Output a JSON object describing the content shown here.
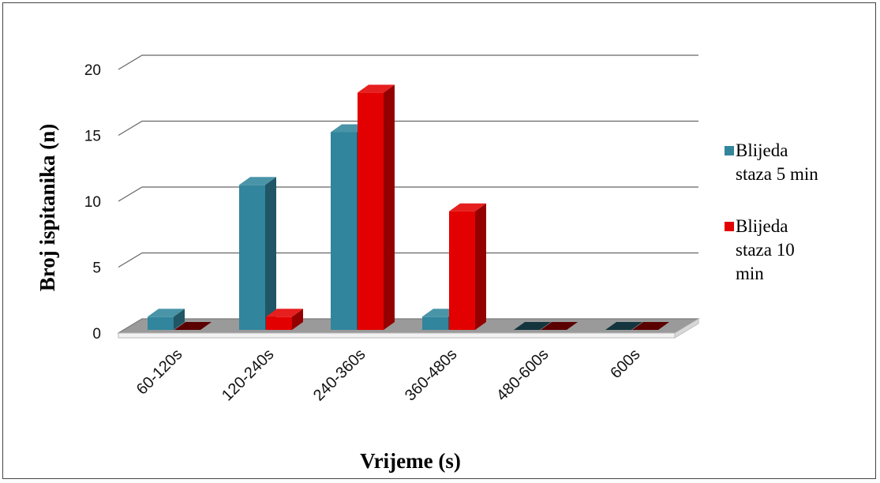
{
  "chart_data": {
    "type": "bar",
    "three_d": true,
    "categories": [
      "60-120s",
      "120-240s",
      "240-360s",
      "360-480s",
      "480-600s",
      "600s"
    ],
    "series": [
      {
        "name": "Blijeda staza 5 min",
        "color": "#31859c",
        "values": [
          1,
          11,
          15,
          1,
          0,
          0
        ]
      },
      {
        "name": "Blijeda staza 10 min",
        "color": "#e30000",
        "values": [
          0,
          1,
          18,
          9,
          0,
          0
        ]
      }
    ],
    "xlabel": "Vrijeme (s)",
    "ylabel": "Broj ispitanika  (n)",
    "ylim": [
      0,
      20
    ],
    "yticks": [
      "0",
      "5",
      "10",
      "15",
      "20"
    ],
    "grid": true,
    "legend_position": "right"
  }
}
